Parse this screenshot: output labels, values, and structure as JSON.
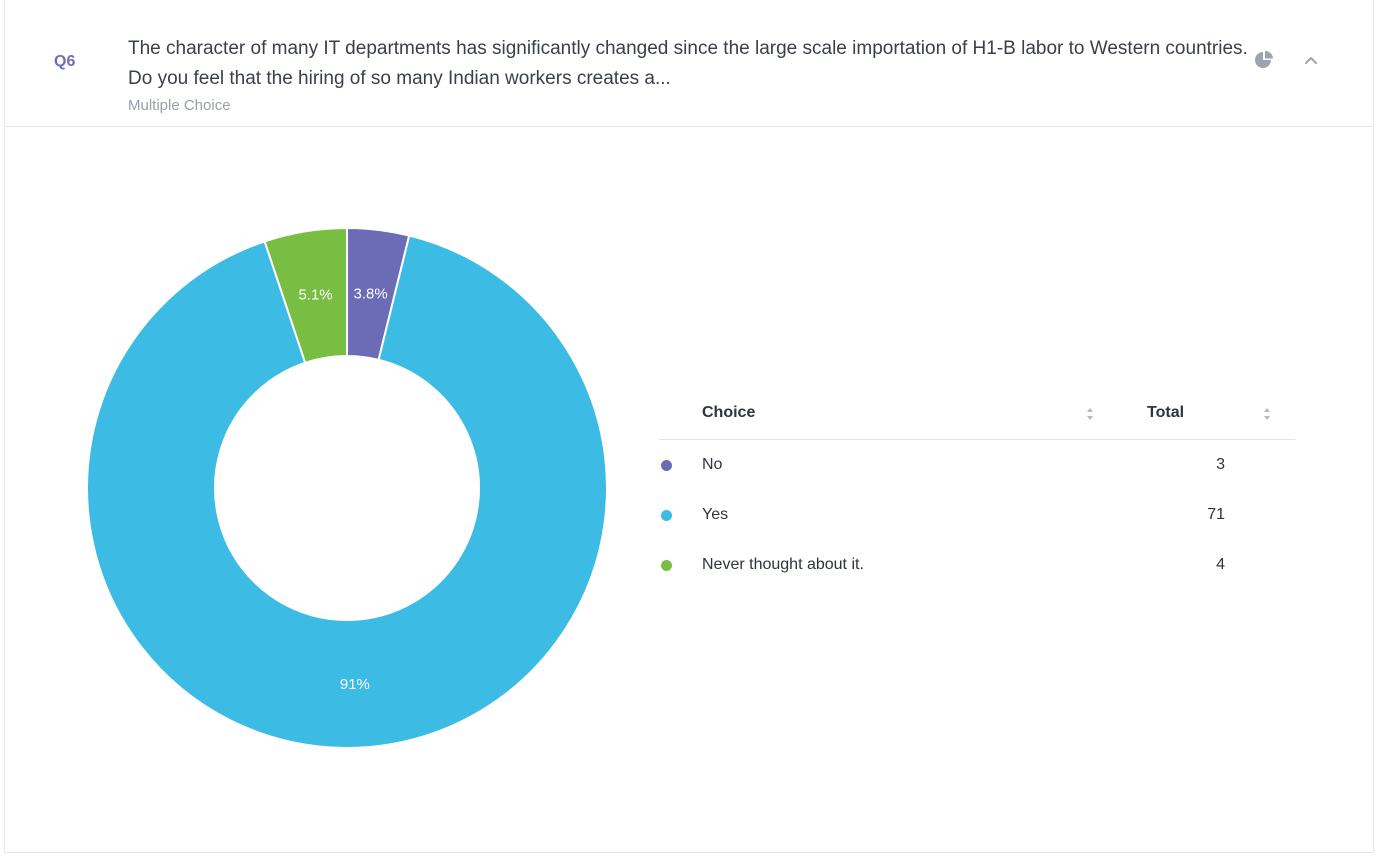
{
  "question": {
    "number": "Q6",
    "text": "The character of many IT departments has significantly changed since the large scale importation of H1-B labor to Western countries. Do you feel that the hiring of so many Indian workers creates a...",
    "type": "Multiple Choice"
  },
  "header_icons": {
    "chart_toggle": "pie-chart-icon",
    "collapse": "chevron-up-icon"
  },
  "table": {
    "col_choice": "Choice",
    "col_total": "Total",
    "rows": [
      {
        "choice": "No",
        "total": "3",
        "color": "#6b6cb5"
      },
      {
        "choice": "Yes",
        "total": "71",
        "color": "#3cbbe4"
      },
      {
        "choice": "Never thought about it.",
        "total": "4",
        "color": "#78be43"
      }
    ]
  },
  "chart_data": {
    "type": "pie",
    "donut": true,
    "categories": [
      "No",
      "Yes",
      "Never thought about it."
    ],
    "values": [
      3,
      71,
      4
    ],
    "data_labels": [
      "3.8%",
      "91%",
      "5.1%"
    ],
    "colors": [
      "#6b6cb5",
      "#3cbbe4",
      "#78be43"
    ]
  }
}
